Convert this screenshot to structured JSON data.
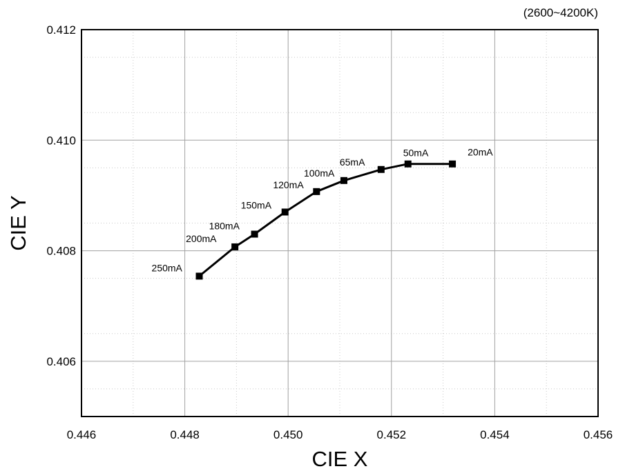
{
  "chart_data": {
    "type": "line",
    "annotation": "(2600~4200K)",
    "xlabel": "CIE X",
    "ylabel": "CIE Y",
    "xlim": [
      0.446,
      0.456
    ],
    "ylim": [
      0.405,
      0.412
    ],
    "x_ticks": [
      "0.446",
      "0.448",
      "0.450",
      "0.452",
      "0.454",
      "0.456"
    ],
    "y_ticks": [
      "0.406",
      "0.408",
      "0.410",
      "0.412"
    ],
    "grid": true,
    "series": [
      {
        "points": [
          {
            "x": 0.44828,
            "y": 0.40754,
            "label": "250mA"
          },
          {
            "x": 0.44897,
            "y": 0.40807,
            "label": "200mA"
          },
          {
            "x": 0.44935,
            "y": 0.4083,
            "label": "180mA"
          },
          {
            "x": 0.44994,
            "y": 0.4087,
            "label": "150mA"
          },
          {
            "x": 0.45055,
            "y": 0.40907,
            "label": "120mA"
          },
          {
            "x": 0.45108,
            "y": 0.40927,
            "label": "100mA"
          },
          {
            "x": 0.4518,
            "y": 0.40947,
            "label": "65mA"
          },
          {
            "x": 0.45232,
            "y": 0.40957,
            "label": "50mA"
          },
          {
            "x": 0.45318,
            "y": 0.40957,
            "label": "20mA"
          }
        ]
      }
    ]
  }
}
